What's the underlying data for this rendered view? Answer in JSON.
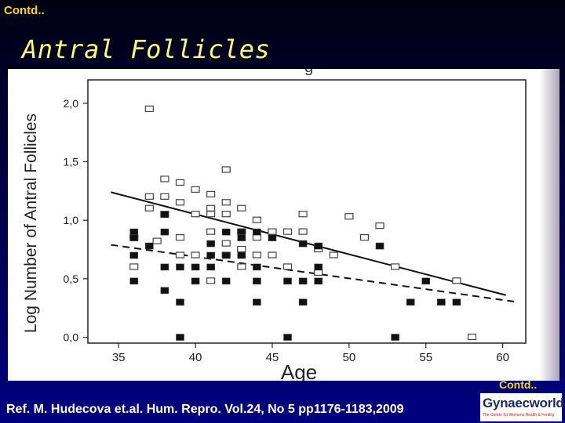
{
  "slide": {
    "contd_top": "Contd..",
    "title": "Antral Follicles",
    "contd_bottom": "Contd..",
    "reference": "Ref. M. Hudecova et.al. Hum. Repro. Vol.24, No 5 pp1176-1183,2009",
    "logo": {
      "wordmark": "Gynaecworld",
      "tagline": "The Center for Womens Health & Fertility"
    },
    "colors": {
      "title": "#ffff66",
      "contd": "#ffd700",
      "reference": "#ffffff"
    }
  },
  "chart_data": {
    "type": "scatter",
    "title": "",
    "xlabel": "Age",
    "ylabel": "Log Number of Antral Follicles",
    "xlim": [
      33,
      61.5
    ],
    "ylim": [
      -0.05,
      2.2
    ],
    "xticks": [
      "35",
      "40",
      "45",
      "50",
      "55",
      "60"
    ],
    "yticks": [
      "0,0",
      "0,5",
      "1,0",
      "1,5",
      "2,0"
    ],
    "grid": false,
    "series": [
      {
        "marker": "open-square",
        "color": "#000000",
        "points": [
          [
            37,
            1.95
          ],
          [
            38,
            1.35
          ],
          [
            39,
            1.32
          ],
          [
            40,
            1.26
          ],
          [
            41,
            1.22
          ],
          [
            42,
            1.43
          ],
          [
            37,
            1.2
          ],
          [
            38,
            1.2
          ],
          [
            39,
            1.15
          ],
          [
            42,
            1.15
          ],
          [
            43,
            1.1
          ],
          [
            37,
            1.1
          ],
          [
            38,
            1.05
          ],
          [
            40,
            1.05
          ],
          [
            41,
            1.05
          ],
          [
            41,
            1.1
          ],
          [
            42,
            1.05
          ],
          [
            44,
            1.0
          ],
          [
            45,
            0.9
          ],
          [
            46,
            0.9
          ],
          [
            47,
            0.9
          ],
          [
            47,
            1.05
          ],
          [
            50,
            1.03
          ],
          [
            51,
            0.85
          ],
          [
            52,
            0.95
          ],
          [
            39,
            0.85
          ],
          [
            41,
            0.9
          ],
          [
            42,
            0.8
          ],
          [
            43,
            0.75
          ],
          [
            44,
            0.85
          ],
          [
            40,
            0.7
          ],
          [
            42,
            0.7
          ],
          [
            44,
            0.7
          ],
          [
            48,
            0.75
          ],
          [
            49,
            0.7
          ],
          [
            36,
            0.6
          ],
          [
            39,
            0.7
          ],
          [
            43,
            0.6
          ],
          [
            46,
            0.6
          ],
          [
            53,
            0.6
          ],
          [
            57,
            0.48
          ],
          [
            41,
            0.48
          ],
          [
            58,
            0.0
          ],
          [
            43,
            0.9
          ],
          [
            37.5,
            0.82
          ],
          [
            45,
            0.7
          ],
          [
            36,
            0.85
          ],
          [
            48,
            0.55
          ]
        ]
      },
      {
        "marker": "filled-square",
        "color": "#000000",
        "points": [
          [
            36,
            0.9
          ],
          [
            36,
            0.85
          ],
          [
            38,
            0.9
          ],
          [
            38,
            1.05
          ],
          [
            41,
            0.8
          ],
          [
            42,
            0.9
          ],
          [
            43,
            0.9
          ],
          [
            43,
            0.85
          ],
          [
            44,
            0.9
          ],
          [
            45,
            0.85
          ],
          [
            37,
            0.78
          ],
          [
            36,
            0.7
          ],
          [
            41,
            0.7
          ],
          [
            42,
            0.7
          ],
          [
            43,
            0.7
          ],
          [
            47,
            0.8
          ],
          [
            48,
            0.78
          ],
          [
            52,
            0.78
          ],
          [
            38,
            0.6
          ],
          [
            39,
            0.6
          ],
          [
            40,
            0.6
          ],
          [
            41,
            0.6
          ],
          [
            44,
            0.6
          ],
          [
            48,
            0.6
          ],
          [
            36,
            0.48
          ],
          [
            40,
            0.48
          ],
          [
            42,
            0.48
          ],
          [
            44,
            0.48
          ],
          [
            46,
            0.48
          ],
          [
            47,
            0.48
          ],
          [
            48,
            0.48
          ],
          [
            55,
            0.48
          ],
          [
            38,
            0.4
          ],
          [
            39,
            0.3
          ],
          [
            44,
            0.3
          ],
          [
            47,
            0.3
          ],
          [
            54,
            0.3
          ],
          [
            56,
            0.3
          ],
          [
            57,
            0.3
          ],
          [
            39,
            0.0
          ],
          [
            46,
            0.0
          ],
          [
            53,
            0.0
          ]
        ]
      }
    ],
    "lines": [
      {
        "style": "solid",
        "from": [
          34.5,
          1.24
        ],
        "to": [
          60.2,
          0.36
        ]
      },
      {
        "style": "dashed",
        "from": [
          34.5,
          0.79
        ],
        "to": [
          61.0,
          0.3
        ]
      }
    ],
    "partial_text_at_top": "g"
  }
}
